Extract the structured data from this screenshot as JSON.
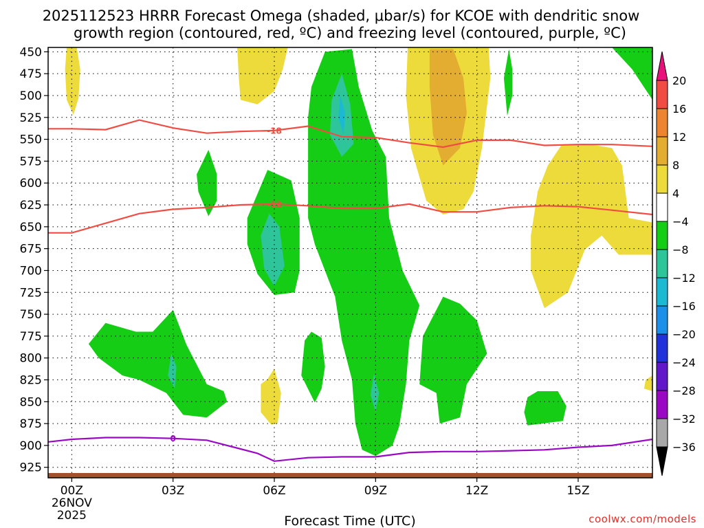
{
  "chart_data": {
    "type": "contour",
    "title_line1": "2025112523 HRRR Forecast Omega (shaded, μbar/s) for KCOE with dendritic snow",
    "title_line2": "growth region (contoured, red, ºC) and freezing level (contoured, purple, ºC)",
    "xlabel": "Forecast Time (UTC)",
    "credit": "coolwx.com/models",
    "x_range_hours": [
      -0.7,
      17.2
    ],
    "y_range_mb": [
      445,
      937
    ],
    "x_ticks": [
      {
        "hour": 0,
        "label": "00Z",
        "sub1": "26NOV",
        "sub2": "2025"
      },
      {
        "hour": 3,
        "label": "03Z",
        "sub1": "",
        "sub2": ""
      },
      {
        "hour": 6,
        "label": "06Z",
        "sub1": "",
        "sub2": ""
      },
      {
        "hour": 9,
        "label": "09Z",
        "sub1": "",
        "sub2": ""
      },
      {
        "hour": 12,
        "label": "12Z",
        "sub1": "",
        "sub2": ""
      },
      {
        "hour": 15,
        "label": "15Z",
        "sub1": "",
        "sub2": ""
      }
    ],
    "y_ticks": [
      {
        "p": 450,
        "label": "450"
      },
      {
        "p": 475,
        "label": "475"
      },
      {
        "p": 500,
        "label": "500"
      },
      {
        "p": 525,
        "label": "525"
      },
      {
        "p": 550,
        "label": "550"
      },
      {
        "p": 575,
        "label": "575"
      },
      {
        "p": 600,
        "label": "600"
      },
      {
        "p": 625,
        "label": "625"
      },
      {
        "p": 650,
        "label": "650"
      },
      {
        "p": 675,
        "label": "675"
      },
      {
        "p": 700,
        "label": "700"
      },
      {
        "p": 725,
        "label": "725"
      },
      {
        "p": 750,
        "label": "750"
      },
      {
        "p": 775,
        "label": "775"
      },
      {
        "p": 800,
        "label": "800"
      },
      {
        "p": 825,
        "label": "825"
      },
      {
        "p": 850,
        "label": "850"
      },
      {
        "p": 875,
        "label": "875"
      },
      {
        "p": 900,
        "label": "900"
      },
      {
        "p": 925,
        "label": "925"
      }
    ],
    "colorbar": {
      "levels": [
        "20",
        "16",
        "12",
        "8",
        "4",
        "−4",
        "−8",
        "−12",
        "−16",
        "−20",
        "−24",
        "−28",
        "−32",
        "−36"
      ],
      "bins": [
        {
          "range": "16 to 20",
          "color": "#f04c43"
        },
        {
          "range": "12 to 16",
          "color": "#ec8430"
        },
        {
          "range": "8 to 12",
          "color": "#e3ad32"
        },
        {
          "range": "4 to 8",
          "color": "#eddb3c"
        },
        {
          "range": "-4 to 4",
          "color": "#ffffff"
        },
        {
          "range": "-8 to -4",
          "color": "#16cd16"
        },
        {
          "range": "-12 to -8",
          "color": "#2ec59a"
        },
        {
          "range": "-16 to -12",
          "color": "#1bb9d2"
        },
        {
          "range": "-20 to -16",
          "color": "#1c90e8"
        },
        {
          "range": "-24 to -20",
          "color": "#2133d8"
        },
        {
          "range": "-28 to -24",
          "color": "#6018c8"
        },
        {
          "range": "-32 to -28",
          "color": "#9a08c4"
        },
        {
          "range": "-36 to -32",
          "color": "#a8a8a8"
        }
      ],
      "top_arrow_color": "#e8127a",
      "bottom_arrow_color": "#000000"
    },
    "colors": {
      "yellow": "#eddb3c",
      "orange": "#e3ad32",
      "green": "#16cd16",
      "teal": "#2ec59a",
      "cyan": "#1bb9d2",
      "dgz_line": "#f04c43",
      "freezing_line": "#9a08c4",
      "terrain": "#a0522d"
    },
    "dgz_contours": [
      {
        "value": -18,
        "label": "-18",
        "label_at_hour": 6.0,
        "points": [
          [
            -0.7,
            538
          ],
          [
            0,
            538
          ],
          [
            1,
            539
          ],
          [
            2,
            528
          ],
          [
            3,
            537
          ],
          [
            4,
            543
          ],
          [
            5,
            541
          ],
          [
            6,
            540
          ],
          [
            7,
            535
          ],
          [
            8,
            547
          ],
          [
            9,
            548
          ],
          [
            10,
            554
          ],
          [
            11,
            559
          ],
          [
            12,
            551
          ],
          [
            13,
            551
          ],
          [
            14,
            557
          ],
          [
            15,
            556
          ],
          [
            16,
            556
          ],
          [
            17.2,
            558
          ]
        ]
      },
      {
        "value": -12,
        "label": "-12",
        "label_at_hour": 6.0,
        "points": [
          [
            -0.7,
            657
          ],
          [
            0,
            657
          ],
          [
            1,
            646
          ],
          [
            2,
            635
          ],
          [
            3,
            630
          ],
          [
            4,
            628
          ],
          [
            5,
            625
          ],
          [
            6,
            624
          ],
          [
            7,
            626
          ],
          [
            8,
            629
          ],
          [
            9,
            629
          ],
          [
            10,
            624
          ],
          [
            11,
            633
          ],
          [
            12,
            633
          ],
          [
            13,
            628
          ],
          [
            14,
            626
          ],
          [
            15,
            627
          ],
          [
            16,
            631
          ],
          [
            17.2,
            636
          ]
        ]
      }
    ],
    "freezing_contour": {
      "value": 0,
      "label": "0",
      "label_at_hour": 3.0,
      "points": [
        [
          -0.7,
          896
        ],
        [
          0,
          893
        ],
        [
          1,
          891
        ],
        [
          2,
          891
        ],
        [
          3,
          892
        ],
        [
          4,
          894
        ],
        [
          5,
          904
        ],
        [
          5.5,
          909
        ],
        [
          6,
          918
        ],
        [
          7,
          914
        ],
        [
          8,
          913
        ],
        [
          9,
          913
        ],
        [
          10,
          908
        ],
        [
          11,
          907
        ],
        [
          12,
          907
        ],
        [
          13,
          906
        ],
        [
          14,
          905
        ],
        [
          15,
          902
        ],
        [
          16,
          900
        ],
        [
          17.2,
          893
        ]
      ]
    },
    "shaded_regions": [
      {
        "name": "yellow-top-left",
        "color": "yellow",
        "points": [
          [
            -0.15,
            445
          ],
          [
            0.15,
            445
          ],
          [
            0.25,
            470
          ],
          [
            0.2,
            503
          ],
          [
            0.05,
            522
          ],
          [
            -0.15,
            505
          ],
          [
            -0.2,
            470
          ]
        ]
      },
      {
        "name": "yellow-top-05z",
        "color": "yellow",
        "points": [
          [
            4.9,
            445
          ],
          [
            6.4,
            445
          ],
          [
            6.25,
            470
          ],
          [
            6.0,
            495
          ],
          [
            5.5,
            510
          ],
          [
            5.0,
            505
          ],
          [
            4.95,
            480
          ]
        ]
      },
      {
        "name": "yellow-right-10z",
        "color": "yellow",
        "points": [
          [
            9.95,
            445
          ],
          [
            12.35,
            445
          ],
          [
            12.4,
            480
          ],
          [
            12.15,
            560
          ],
          [
            11.9,
            610
          ],
          [
            11.6,
            630
          ],
          [
            11.0,
            636
          ],
          [
            10.5,
            620
          ],
          [
            10.05,
            560
          ],
          [
            9.9,
            500
          ]
        ]
      },
      {
        "name": "orange-11z",
        "color": "orange",
        "points": [
          [
            10.6,
            447
          ],
          [
            11.3,
            447
          ],
          [
            11.6,
            480
          ],
          [
            11.7,
            520
          ],
          [
            11.5,
            560
          ],
          [
            11.0,
            580
          ],
          [
            10.7,
            545
          ],
          [
            10.6,
            490
          ]
        ]
      },
      {
        "name": "yellow-right-14z",
        "color": "yellow",
        "points": [
          [
            14.5,
            557
          ],
          [
            15.2,
            555
          ],
          [
            16.0,
            560
          ],
          [
            16.3,
            580
          ],
          [
            16.5,
            640
          ],
          [
            17.2,
            645
          ],
          [
            17.2,
            682
          ],
          [
            16.2,
            682
          ],
          [
            15.7,
            660
          ],
          [
            15.2,
            676
          ],
          [
            14.7,
            725
          ],
          [
            14.0,
            743
          ],
          [
            13.6,
            700
          ],
          [
            13.6,
            660
          ],
          [
            13.8,
            610
          ],
          [
            14.1,
            580
          ]
        ]
      },
      {
        "name": "yellow-06z-small",
        "color": "yellow",
        "points": [
          [
            5.8,
            824
          ],
          [
            6.0,
            812
          ],
          [
            6.2,
            840
          ],
          [
            6.1,
            875
          ],
          [
            5.9,
            876
          ],
          [
            5.6,
            862
          ],
          [
            5.6,
            830
          ]
        ]
      },
      {
        "name": "yellow-right-edge",
        "color": "yellow",
        "points": [
          [
            17.2,
            820
          ],
          [
            17.0,
            825
          ],
          [
            16.95,
            835
          ],
          [
            17.2,
            838
          ]
        ]
      },
      {
        "name": "green-04z",
        "color": "green",
        "points": [
          [
            4.05,
            562
          ],
          [
            4.3,
            590
          ],
          [
            4.3,
            620
          ],
          [
            4.05,
            638
          ],
          [
            3.75,
            610
          ],
          [
            3.7,
            590
          ]
        ]
      },
      {
        "name": "green-06z",
        "color": "green",
        "points": [
          [
            5.8,
            585
          ],
          [
            6.5,
            597
          ],
          [
            6.75,
            640
          ],
          [
            6.75,
            700
          ],
          [
            6.6,
            725
          ],
          [
            6.0,
            728
          ],
          [
            5.5,
            704
          ],
          [
            5.2,
            670
          ],
          [
            5.2,
            640
          ]
        ]
      },
      {
        "name": "green-main-08z",
        "color": "green",
        "points": [
          [
            7.5,
            450
          ],
          [
            8.3,
            447
          ],
          [
            8.5,
            490
          ],
          [
            8.9,
            540
          ],
          [
            9.3,
            570
          ],
          [
            9.4,
            640
          ],
          [
            9.8,
            700
          ],
          [
            10.3,
            740
          ],
          [
            10.0,
            780
          ],
          [
            9.9,
            830
          ],
          [
            9.7,
            878
          ],
          [
            9.5,
            900
          ],
          [
            9.0,
            912
          ],
          [
            8.6,
            905
          ],
          [
            8.4,
            875
          ],
          [
            8.3,
            825
          ],
          [
            8.0,
            780
          ],
          [
            7.8,
            730
          ],
          [
            7.2,
            670
          ],
          [
            7.0,
            640
          ],
          [
            7.0,
            590
          ],
          [
            7.0,
            525
          ],
          [
            7.1,
            490
          ]
        ]
      },
      {
        "name": "green-07z",
        "color": "green",
        "points": [
          [
            7.1,
            770
          ],
          [
            7.4,
            777
          ],
          [
            7.5,
            810
          ],
          [
            7.4,
            835
          ],
          [
            7.2,
            851
          ],
          [
            6.8,
            820
          ],
          [
            6.9,
            780
          ]
        ]
      },
      {
        "name": "green-11-12z",
        "color": "green",
        "points": [
          [
            11.0,
            730
          ],
          [
            11.5,
            738
          ],
          [
            12.0,
            757
          ],
          [
            12.3,
            795
          ],
          [
            11.7,
            830
          ],
          [
            11.5,
            868
          ],
          [
            10.9,
            875
          ],
          [
            10.8,
            840
          ],
          [
            10.3,
            830
          ],
          [
            10.4,
            775
          ]
        ]
      },
      {
        "name": "green-13z-strip",
        "color": "green",
        "points": [
          [
            12.95,
            447
          ],
          [
            13.05,
            470
          ],
          [
            13.05,
            500
          ],
          [
            12.9,
            523
          ],
          [
            12.8,
            480
          ]
        ]
      },
      {
        "name": "green-14z-small",
        "color": "green",
        "points": [
          [
            13.8,
            838
          ],
          [
            14.4,
            838
          ],
          [
            14.65,
            855
          ],
          [
            14.55,
            872
          ],
          [
            13.5,
            877
          ],
          [
            13.4,
            862
          ],
          [
            13.5,
            845
          ]
        ]
      },
      {
        "name": "green-left-03z",
        "color": "green",
        "points": [
          [
            0.5,
            784
          ],
          [
            1.0,
            760
          ],
          [
            1.9,
            770
          ],
          [
            2.4,
            770
          ],
          [
            3.0,
            745
          ],
          [
            3.4,
            785
          ],
          [
            4.0,
            830
          ],
          [
            4.5,
            838
          ],
          [
            4.6,
            850
          ],
          [
            4.0,
            868
          ],
          [
            3.3,
            865
          ],
          [
            2.8,
            840
          ],
          [
            2.0,
            825
          ],
          [
            1.5,
            820
          ],
          [
            0.8,
            800
          ]
        ]
      },
      {
        "name": "green-top-right",
        "color": "green",
        "points": [
          [
            16.0,
            445
          ],
          [
            17.2,
            445
          ],
          [
            17.2,
            505
          ],
          [
            16.6,
            470
          ]
        ]
      },
      {
        "name": "teal-06z",
        "color": "teal",
        "points": [
          [
            5.85,
            635
          ],
          [
            6.15,
            650
          ],
          [
            6.3,
            695
          ],
          [
            6.0,
            718
          ],
          [
            5.7,
            698
          ],
          [
            5.6,
            660
          ]
        ]
      },
      {
        "name": "teal-08z",
        "color": "teal",
        "points": [
          [
            8.0,
            475
          ],
          [
            8.25,
            510
          ],
          [
            8.35,
            555
          ],
          [
            8.0,
            570
          ],
          [
            7.65,
            545
          ],
          [
            7.7,
            505
          ]
        ]
      },
      {
        "name": "teal-03z",
        "color": "teal",
        "points": [
          [
            2.95,
            795
          ],
          [
            3.1,
            810
          ],
          [
            3.05,
            835
          ],
          [
            2.85,
            820
          ]
        ]
      },
      {
        "name": "teal-09z",
        "color": "teal",
        "points": [
          [
            8.95,
            818
          ],
          [
            9.1,
            840
          ],
          [
            9.0,
            862
          ],
          [
            8.85,
            842
          ]
        ]
      },
      {
        "name": "cyan-08z",
        "color": "cyan",
        "points": [
          [
            7.95,
            500
          ],
          [
            8.1,
            520
          ],
          [
            8.05,
            545
          ],
          [
            7.9,
            525
          ]
        ]
      }
    ]
  }
}
